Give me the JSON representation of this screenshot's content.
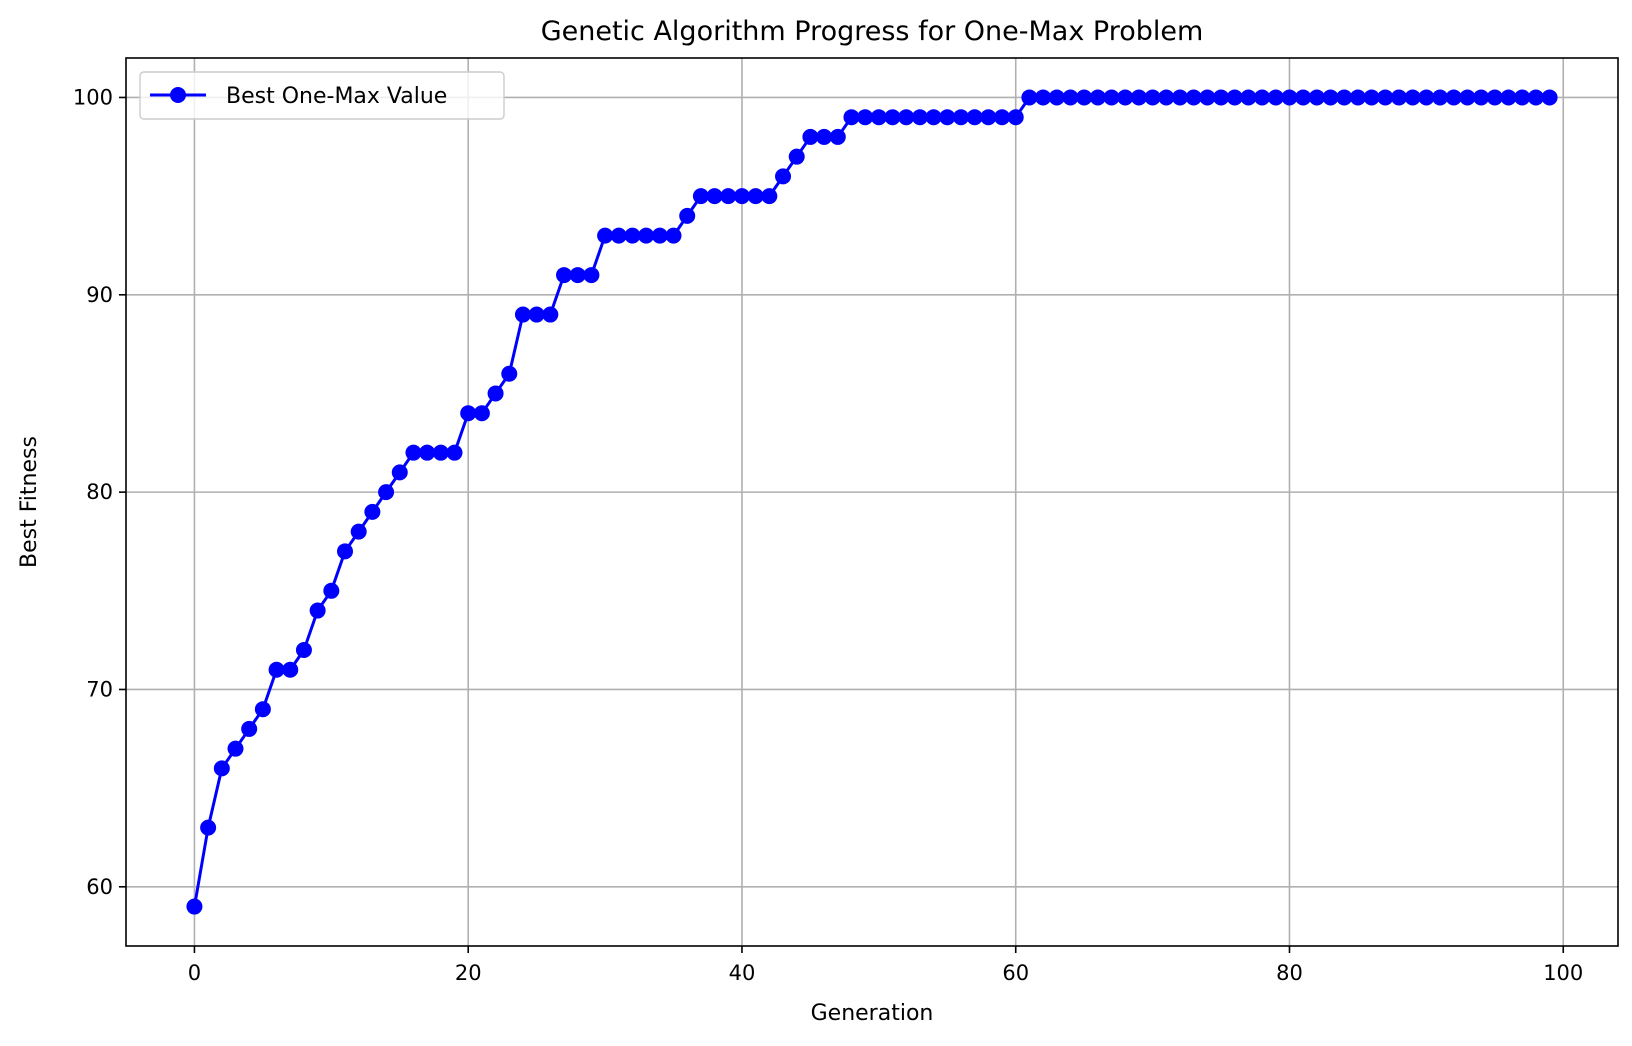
{
  "chart_data": {
    "type": "line",
    "title": "Genetic Algorithm Progress for One-Max Problem",
    "xlabel": "Generation",
    "ylabel": "Best Fitness",
    "xlim": [
      -5,
      104
    ],
    "ylim": [
      57,
      102
    ],
    "xticks": [
      0,
      20,
      40,
      60,
      80,
      100
    ],
    "yticks": [
      60,
      70,
      80,
      90,
      100
    ],
    "grid": true,
    "legend_position": "top-left",
    "series": [
      {
        "name": "Best One-Max Value",
        "color": "#0000ff",
        "marker": "circle",
        "x": [
          0,
          1,
          2,
          3,
          4,
          5,
          6,
          7,
          8,
          9,
          10,
          11,
          12,
          13,
          14,
          15,
          16,
          17,
          18,
          19,
          20,
          21,
          22,
          23,
          24,
          25,
          26,
          27,
          28,
          29,
          30,
          31,
          32,
          33,
          34,
          35,
          36,
          37,
          38,
          39,
          40,
          41,
          42,
          43,
          44,
          45,
          46,
          47,
          48,
          49,
          50,
          51,
          52,
          53,
          54,
          55,
          56,
          57,
          58,
          59,
          60,
          61,
          62,
          63,
          64,
          65,
          66,
          67,
          68,
          69,
          70,
          71,
          72,
          73,
          74,
          75,
          76,
          77,
          78,
          79,
          80,
          81,
          82,
          83,
          84,
          85,
          86,
          87,
          88,
          89,
          90,
          91,
          92,
          93,
          94,
          95,
          96,
          97,
          98,
          99
        ],
        "values": [
          59,
          63,
          66,
          67,
          68,
          69,
          71,
          71,
          72,
          74,
          75,
          77,
          78,
          79,
          80,
          81,
          82,
          82,
          82,
          82,
          84,
          84,
          85,
          86,
          89,
          89,
          89,
          91,
          91,
          91,
          93,
          93,
          93,
          93,
          93,
          93,
          94,
          95,
          95,
          95,
          95,
          95,
          95,
          96,
          97,
          98,
          98,
          98,
          99,
          99,
          99,
          99,
          99,
          99,
          99,
          99,
          99,
          99,
          99,
          99,
          99,
          100,
          100,
          100,
          100,
          100,
          100,
          100,
          100,
          100,
          100,
          100,
          100,
          100,
          100,
          100,
          100,
          100,
          100,
          100,
          100,
          100,
          100,
          100,
          100,
          100,
          100,
          100,
          100,
          100,
          100,
          100,
          100,
          100,
          100,
          100,
          100,
          100,
          100,
          100
        ]
      }
    ]
  }
}
